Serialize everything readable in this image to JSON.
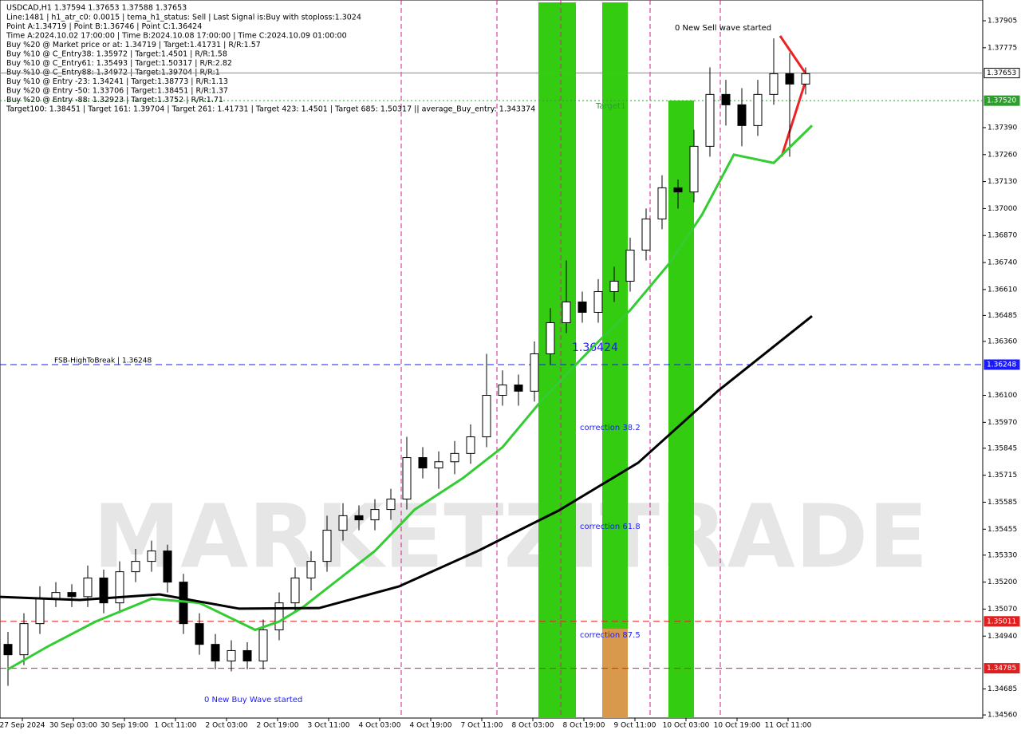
{
  "chart_data": {
    "type": "candlestick",
    "title": "USDCAD,H1  1.37594 1.37653 1.37588 1.37653",
    "header": [
      "Line:1481 | h1_atr_c0: 0.0015 | tema_h1_status: Sell | Last Signal is:Buy with stoploss:1.3024",
      "Point A:1.34719 | Point B:1.36746 | Point C:1.36424",
      "Time A:2024.10.02 17:00:00 | Time B:2024.10.08 17:00:00 | Time C:2024.10.09 01:00:00",
      "Buy %20 @ Market price or at: 1.34719 | Target:1.41731 | R/R:1.57",
      "Buy %10 @ C_Entry38: 1.35972 | Target:1.4501 | R/R:1.58",
      "Buy %10 @ C_Entry61: 1.35493 | Target:1.50317 | R/R:2.82",
      "Buy %10 @ C_Entry88: 1.34972 | Target:1.39704 | R/R:1",
      "Buy %10 @ Entry -23: 1.34241 | Target:1.38773 | R/R:1.13",
      "Buy %20 @ Entry -50: 1.33706 | Target:1.38451 | R/R:1.37",
      "Buy %20 @ Entry -88: 1.32923 | Target:1.3752 | R/R:1.71",
      "Target100: 1.38451 | Target 161: 1.39704 | Target 261: 1.41731 | Target 423: 1.4501 | Target 685: 1.50317 || average_Buy_entry: 1.343374"
    ],
    "annotations": [
      "0 New Sell wave started",
      "0 New Buy Wave started",
      "Target1",
      "1.36424",
      "correction 38.2",
      "correction 61.8",
      "correction 87.5",
      "FSB-HighToBreak | 1.36248"
    ],
    "watermark": "MARKETZITRADE",
    "x_labels": [
      "27 Sep 2024",
      "30 Sep 03:00",
      "30 Sep 19:00",
      "1 Oct 11:00",
      "2 Oct 03:00",
      "2 Oct 19:00",
      "3 Oct 11:00",
      "4 Oct 03:00",
      "4 Oct 19:00",
      "7 Oct 11:00",
      "8 Oct 03:00",
      "8 Oct 19:00",
      "9 Oct 11:00",
      "10 Oct 03:00",
      "10 Oct 19:00",
      "11 Oct 11:00"
    ],
    "ylim": [
      1.34545,
      1.38005
    ],
    "yticks": [
      {
        "value": 1.37905,
        "label": "1.37905"
      },
      {
        "value": 1.37775,
        "label": "1.37775"
      },
      {
        "value": 1.3739,
        "label": "1.37390"
      },
      {
        "value": 1.3726,
        "label": "1.37260"
      },
      {
        "value": 1.3713,
        "label": "1.37130"
      },
      {
        "value": 1.37,
        "label": "1.37000"
      },
      {
        "value": 1.3687,
        "label": "1.36870"
      },
      {
        "value": 1.3674,
        "label": "1.36740"
      },
      {
        "value": 1.3661,
        "label": "1.36610"
      },
      {
        "value": 1.36485,
        "label": "1.36485"
      },
      {
        "value": 1.3636,
        "label": "1.36360"
      },
      {
        "value": 1.361,
        "label": "1.36100"
      },
      {
        "value": 1.3597,
        "label": "1.35970"
      },
      {
        "value": 1.35845,
        "label": "1.35845"
      },
      {
        "value": 1.35715,
        "label": "1.35715"
      },
      {
        "value": 1.35585,
        "label": "1.35585"
      },
      {
        "value": 1.35455,
        "label": "1.35455"
      },
      {
        "value": 1.3533,
        "label": "1.35330"
      },
      {
        "value": 1.352,
        "label": "1.35200"
      },
      {
        "value": 1.3507,
        "label": "1.35070"
      },
      {
        "value": 1.3494,
        "label": "1.34940"
      },
      {
        "value": 1.34685,
        "label": "1.34685"
      },
      {
        "value": 1.3456,
        "label": "1.34560"
      }
    ],
    "levels": [
      {
        "value": 1.37653,
        "label": "1.37653",
        "color": "#8090a0"
      },
      {
        "value": 1.3752,
        "label": "1.37520",
        "color": "#2e9e2e"
      },
      {
        "value": 1.36248,
        "label": "1.36248",
        "color": "#1a1aff"
      },
      {
        "value": 1.35011,
        "label": "1.35011",
        "color": "#e02020"
      },
      {
        "value": 1.34785,
        "label": "1.34785",
        "color": "#e02020"
      }
    ],
    "up_color": "#ffffff",
    "down_color": "#000000",
    "open": [
      1.349,
      1.3485,
      1.35,
      1.3512,
      1.3515,
      1.3513,
      1.3522,
      1.351,
      1.3525,
      1.353,
      1.3535,
      1.352,
      1.35,
      1.349,
      1.3482,
      1.3487,
      1.3482,
      1.3497,
      1.351,
      1.3522,
      1.353,
      1.3545,
      1.3552,
      1.355,
      1.3555,
      1.356,
      1.358,
      1.3575,
      1.3578,
      1.3582,
      1.359,
      1.361,
      1.3615,
      1.3612,
      1.363,
      1.3645,
      1.3655,
      1.365,
      1.366,
      1.3665,
      1.368,
      1.3695,
      1.371,
      1.3708,
      1.373,
      1.3755,
      1.375,
      1.374,
      1.3755,
      1.3765,
      1.376
    ],
    "high": [
      1.3496,
      1.3505,
      1.3518,
      1.352,
      1.3519,
      1.3528,
      1.3526,
      1.353,
      1.3536,
      1.354,
      1.3538,
      1.3524,
      1.3505,
      1.3495,
      1.3492,
      1.3491,
      1.3502,
      1.3515,
      1.3527,
      1.3535,
      1.3552,
      1.3558,
      1.3557,
      1.356,
      1.3565,
      1.359,
      1.3585,
      1.3583,
      1.3588,
      1.3596,
      1.363,
      1.3622,
      1.362,
      1.3636,
      1.3652,
      1.3675,
      1.366,
      1.3666,
      1.3672,
      1.3686,
      1.37,
      1.3716,
      1.3714,
      1.3738,
      1.3768,
      1.3762,
      1.3758,
      1.3762,
      1.3782,
      1.3775,
      1.3768
    ],
    "low": [
      1.347,
      1.348,
      1.3495,
      1.3508,
      1.3508,
      1.3508,
      1.3505,
      1.3505,
      1.352,
      1.3525,
      1.3515,
      1.3495,
      1.3485,
      1.3478,
      1.3477,
      1.3478,
      1.3478,
      1.3492,
      1.3505,
      1.3516,
      1.3525,
      1.354,
      1.3545,
      1.3545,
      1.355,
      1.3555,
      1.357,
      1.3565,
      1.3572,
      1.3577,
      1.3585,
      1.3605,
      1.3605,
      1.3607,
      1.3625,
      1.364,
      1.3645,
      1.3645,
      1.3655,
      1.366,
      1.3675,
      1.369,
      1.37,
      1.3703,
      1.3725,
      1.374,
      1.373,
      1.3735,
      1.375,
      1.3725,
      1.3755
    ],
    "close": [
      1.3485,
      1.35,
      1.3512,
      1.3515,
      1.3513,
      1.3522,
      1.351,
      1.3525,
      1.353,
      1.3535,
      1.352,
      1.35,
      1.349,
      1.3482,
      1.3487,
      1.3482,
      1.3497,
      1.351,
      1.3522,
      1.353,
      1.3545,
      1.3552,
      1.355,
      1.3555,
      1.356,
      1.358,
      1.3575,
      1.3578,
      1.3582,
      1.359,
      1.361,
      1.3615,
      1.3612,
      1.363,
      1.3645,
      1.3655,
      1.365,
      1.366,
      1.3665,
      1.368,
      1.3695,
      1.371,
      1.3708,
      1.373,
      1.3755,
      1.375,
      1.374,
      1.3755,
      1.3765,
      1.376,
      1.3765
    ],
    "series": [
      {
        "color": "#33cc33",
        "x": [
          0,
          2.5,
          5.5,
          9,
          12,
          15.5,
          17,
          18.5,
          20.5,
          23,
          25.5,
          28.5,
          31,
          33.5,
          36.5,
          39,
          41.5,
          43.5,
          45.5,
          48,
          50.4
        ],
        "values": [
          1.3478,
          1.3489,
          1.3501,
          1.3512,
          1.351,
          1.3497,
          1.3501,
          1.3508,
          1.352,
          1.3535,
          1.3555,
          1.357,
          1.3585,
          1.3608,
          1.3632,
          1.3651,
          1.3674,
          1.3697,
          1.3726,
          1.3722,
          1.374
        ]
      },
      {
        "color": "#000000",
        "x": [
          -0.5,
          4.5,
          9.5,
          14.5,
          19.5,
          24.5,
          29.5,
          34.5,
          39.5,
          44.5,
          50.4
        ],
        "values": [
          1.35129,
          1.35114,
          1.35141,
          1.35072,
          1.35075,
          1.35179,
          1.35352,
          1.35544,
          1.35775,
          1.36121,
          1.36482
        ]
      }
    ]
  }
}
